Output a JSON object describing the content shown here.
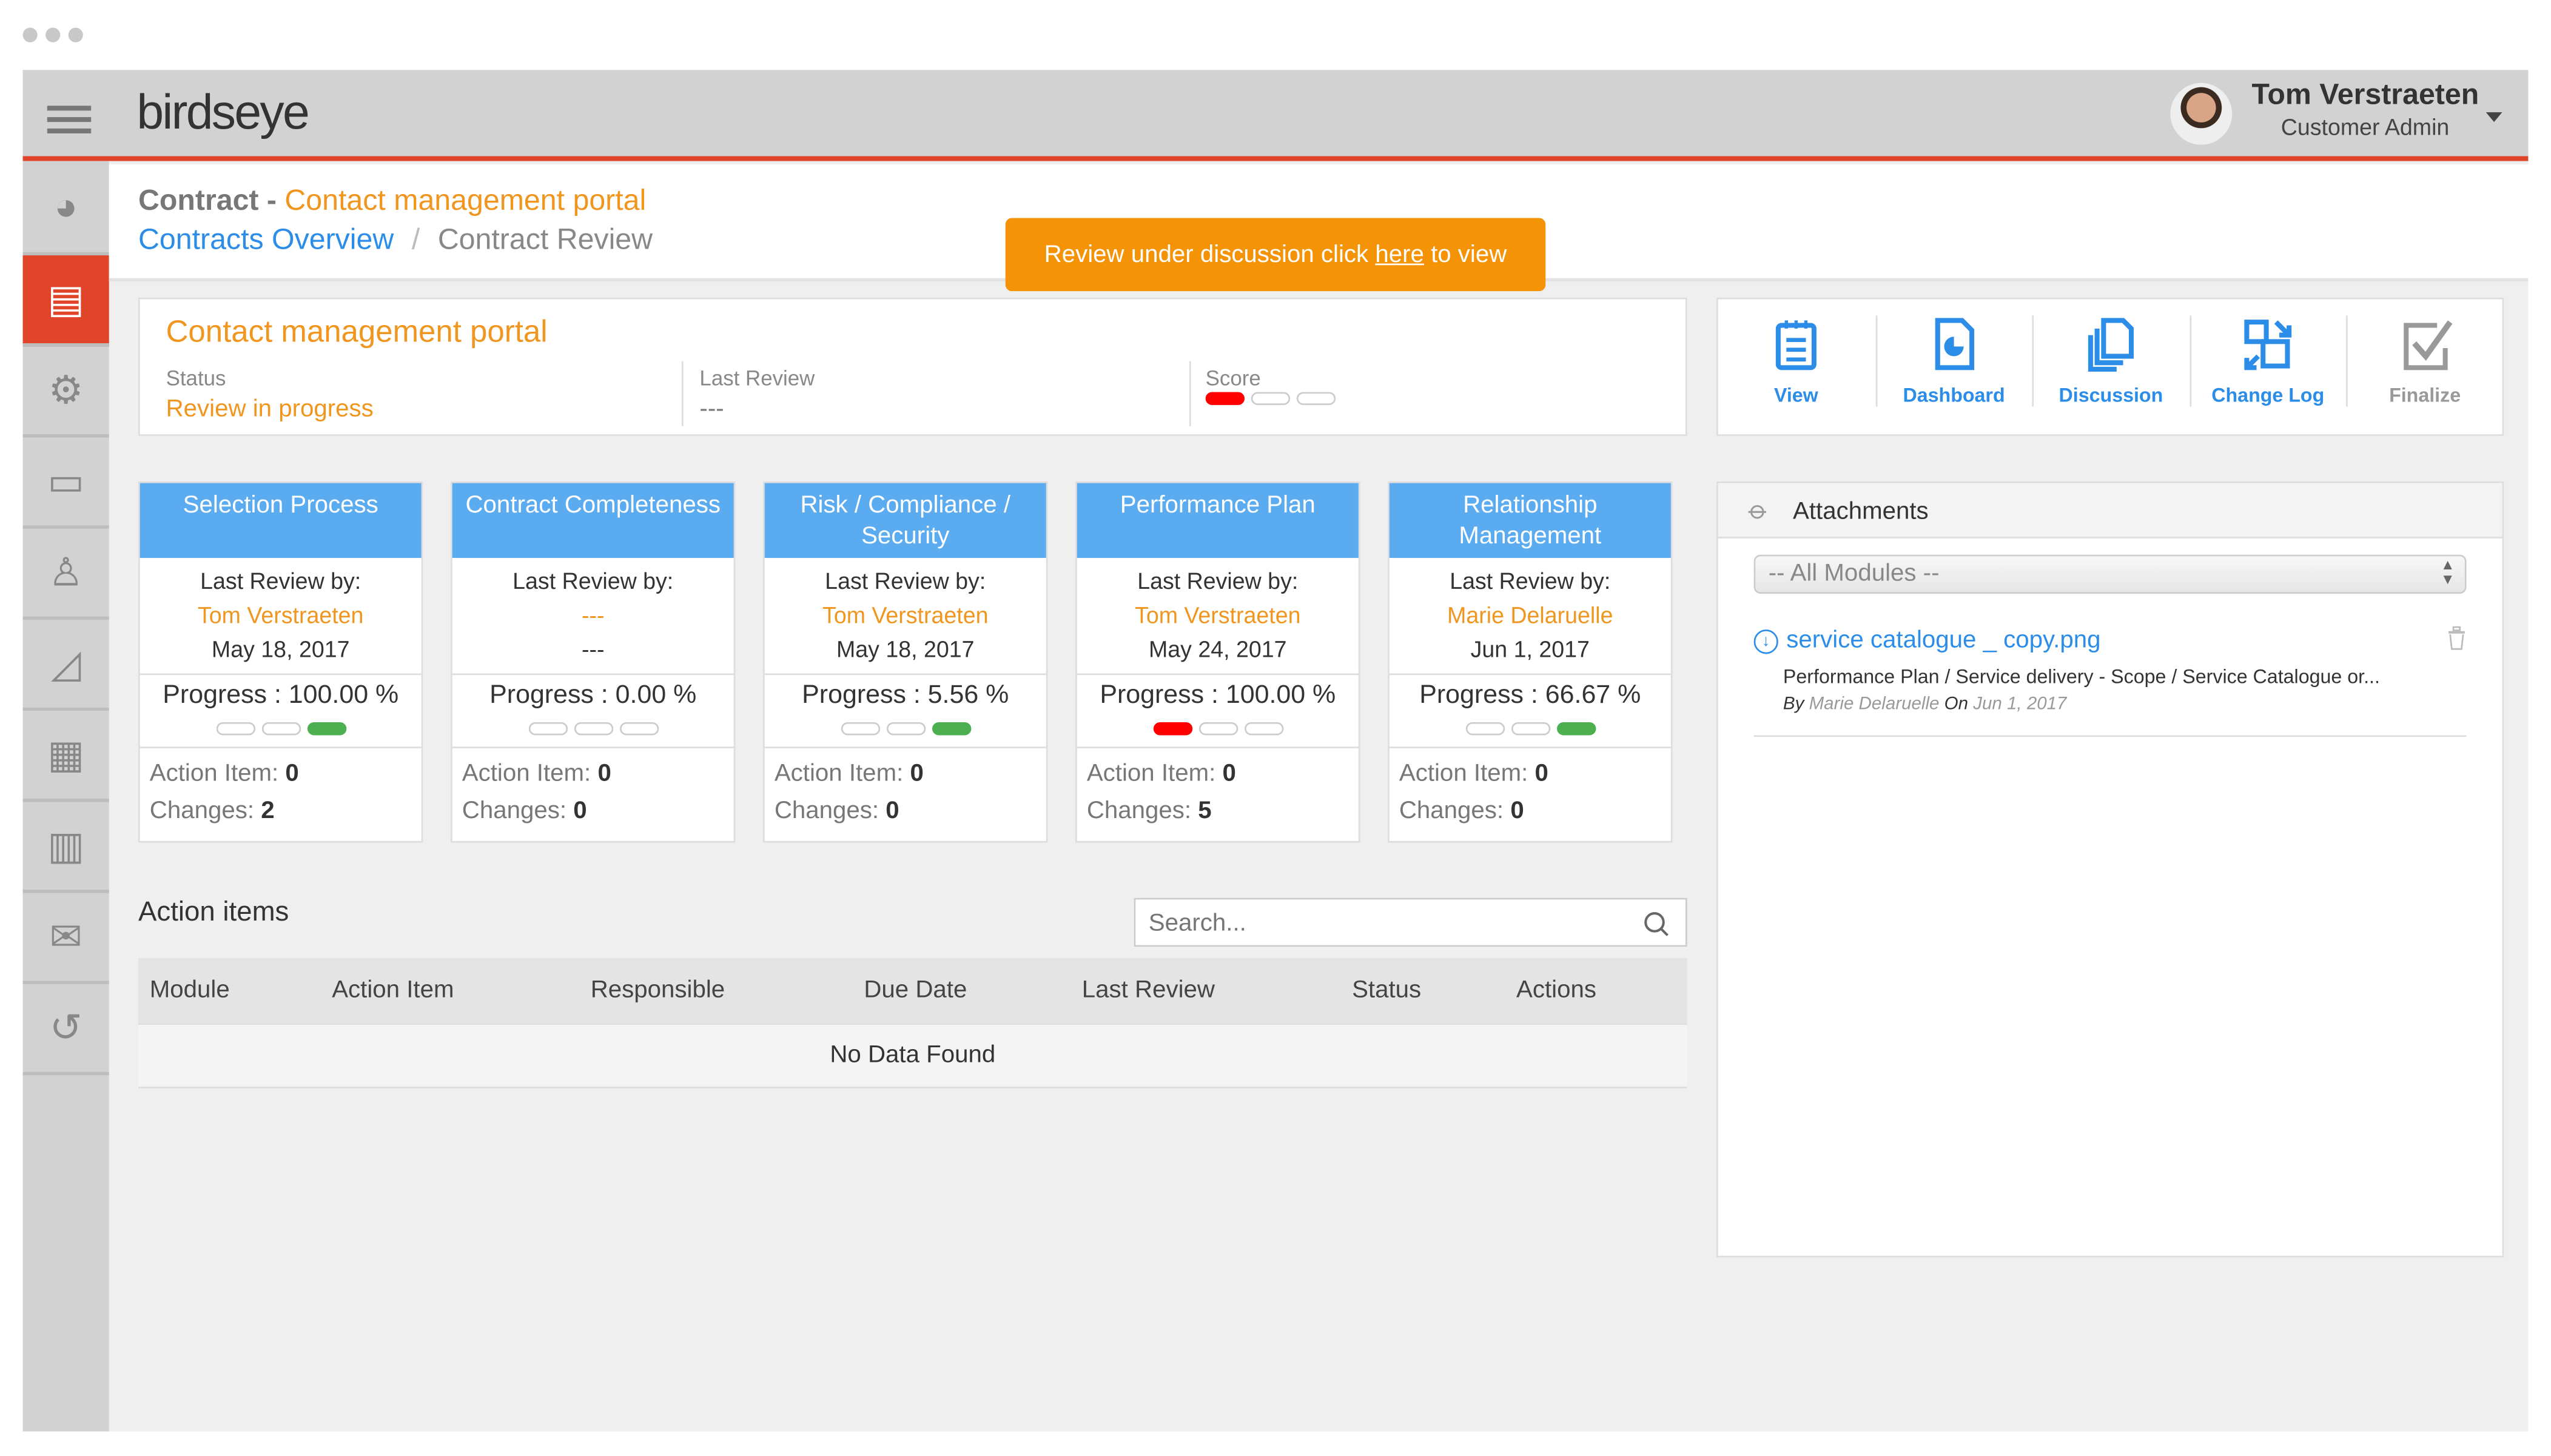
{
  "app": {
    "brand": "birdseye",
    "colors": {
      "accent": "#e0452a",
      "orange": "#f0951e",
      "blue": "#2b8de8",
      "module_header": "#5aabf0",
      "green": "#4cb050"
    }
  },
  "user": {
    "name": "Tom Verstraeten",
    "role": "Customer Admin"
  },
  "sidebar": {
    "items": [
      {
        "icon": "dashboard-gauge-icon"
      },
      {
        "icon": "clipboard-icon",
        "active": true
      },
      {
        "icon": "settings-icon"
      },
      {
        "icon": "window-icon"
      },
      {
        "icon": "user-icon"
      },
      {
        "icon": "area-chart-icon"
      },
      {
        "icon": "calendar-icon"
      },
      {
        "icon": "bar-chart-icon"
      },
      {
        "icon": "mail-icon"
      },
      {
        "icon": "history-icon"
      }
    ]
  },
  "header": {
    "title_prefix": "Contract - ",
    "title": "Contact management portal",
    "breadcrumb": [
      "Contracts Overview",
      "Contract Review"
    ],
    "banner": {
      "before": "Review under discussion click ",
      "link": "here",
      "after": " to view"
    }
  },
  "info": {
    "title": "Contact management portal",
    "status_label": "Status",
    "status": "Review in progress",
    "last_review_label": "Last Review",
    "last_review": "---",
    "score_label": "Score",
    "score_level": 1,
    "score_max": 3
  },
  "toolbar": [
    {
      "label": "View",
      "icon": "clipboard-list-icon"
    },
    {
      "label": "Dashboard",
      "icon": "pie-document-icon"
    },
    {
      "label": "Discussion",
      "icon": "documents-icon"
    },
    {
      "label": "Change Log",
      "icon": "swap-icon"
    },
    {
      "label": "Finalize",
      "icon": "checkbox-icon"
    }
  ],
  "modules": [
    {
      "title": "Selection Process",
      "last_review_label": "Last Review by:",
      "reviewer": "Tom Verstraeten",
      "date": "May 18, 2017",
      "progress": "Progress : 100.00 %",
      "pills": [
        "e",
        "e",
        "g"
      ],
      "action_label": "Action Item: ",
      "action": "0",
      "changes_label": "Changes: ",
      "changes": "2"
    },
    {
      "title": "Contract Completeness",
      "last_review_label": "Last Review by:",
      "reviewer": "---",
      "date": "---",
      "progress": "Progress : 0.00 %",
      "pills": [
        "e",
        "e",
        "e"
      ],
      "action_label": "Action Item: ",
      "action": "0",
      "changes_label": "Changes: ",
      "changes": "0"
    },
    {
      "title": "Risk / Compliance / Security",
      "last_review_label": "Last Review by:",
      "reviewer": "Tom Verstraeten",
      "date": "May 18, 2017",
      "progress": "Progress : 5.56 %",
      "pills": [
        "e",
        "e",
        "g"
      ],
      "action_label": "Action Item: ",
      "action": "0",
      "changes_label": "Changes: ",
      "changes": "0"
    },
    {
      "title": "Performance Plan",
      "last_review_label": "Last Review by:",
      "reviewer": "Tom Verstraeten",
      "date": "May 24, 2017",
      "progress": "Progress : 100.00 %",
      "pills": [
        "r",
        "e",
        "e"
      ],
      "action_label": "Action Item: ",
      "action": "0",
      "changes_label": "Changes: ",
      "changes": "5"
    },
    {
      "title": "Relationship Management",
      "last_review_label": "Last Review by:",
      "reviewer": "Marie Delaruelle",
      "date": "Jun 1, 2017",
      "progress": "Progress : 66.67 %",
      "pills": [
        "e",
        "e",
        "g"
      ],
      "action_label": "Action Item: ",
      "action": "0",
      "changes_label": "Changes: ",
      "changes": "0"
    }
  ],
  "action_items": {
    "title": "Action items",
    "search_placeholder": "Search...",
    "columns": [
      "Module",
      "Action Item",
      "Responsible",
      "Due Date",
      "Last Review",
      "Status",
      "Actions"
    ],
    "empty": "No Data Found"
  },
  "attachments": {
    "title": "Attachments",
    "filter": "-- All Modules --",
    "items": [
      {
        "name": "service catalogue _ copy.png",
        "path": "Performance Plan / Service delivery - Scope / Service Catalogue or...",
        "by_label": "By",
        "by": "Marie Delaruelle",
        "on_label": "On",
        "date": "Jun 1, 2017"
      }
    ]
  }
}
